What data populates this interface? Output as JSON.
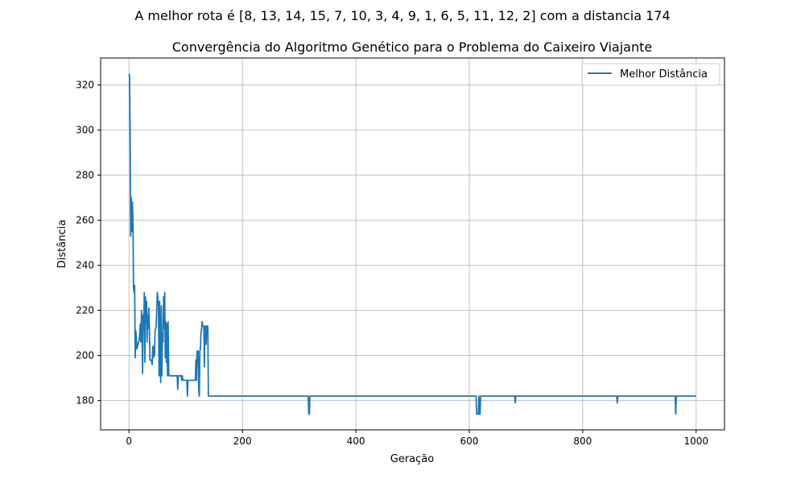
{
  "suptitle": "A melhor rota é [8, 13, 14, 15, 7, 10, 3, 4, 9, 1, 6, 5, 11, 12, 2] com a distancia 174",
  "chart_data": {
    "type": "line",
    "title": "Convergência do Algoritmo Genético para o Problema do Caixeiro Viajante",
    "xlabel": "Geração",
    "ylabel": "Distância",
    "xlim": [
      -50,
      1050
    ],
    "ylim": [
      167,
      332
    ],
    "xticks": [
      0,
      200,
      400,
      600,
      800,
      1000
    ],
    "yticks": [
      180,
      200,
      220,
      240,
      260,
      280,
      300,
      320
    ],
    "grid": true,
    "legend": "top-right",
    "series": [
      {
        "name": "Melhor Distância",
        "color": "#1f77b4",
        "points": [
          [
            0,
            325
          ],
          [
            1,
            324
          ],
          [
            2,
            300
          ],
          [
            3,
            253
          ],
          [
            4,
            270
          ],
          [
            5,
            255
          ],
          [
            6,
            268
          ],
          [
            7,
            260
          ],
          [
            8,
            230
          ],
          [
            9,
            228
          ],
          [
            10,
            231
          ],
          [
            11,
            199
          ],
          [
            12,
            211
          ],
          [
            13,
            208
          ],
          [
            14,
            203
          ],
          [
            15,
            204
          ],
          [
            17,
            206
          ],
          [
            18,
            207
          ],
          [
            19,
            210
          ],
          [
            20,
            214
          ],
          [
            21,
            206
          ],
          [
            22,
            220
          ],
          [
            23,
            213
          ],
          [
            24,
            192
          ],
          [
            25,
            218
          ],
          [
            26,
            212
          ],
          [
            27,
            228
          ],
          [
            28,
            197
          ],
          [
            29,
            226
          ],
          [
            30,
            214
          ],
          [
            31,
            224
          ],
          [
            32,
            206
          ],
          [
            33,
            218
          ],
          [
            34,
            212
          ],
          [
            35,
            221
          ],
          [
            36,
            213
          ],
          [
            37,
            198
          ],
          [
            39,
            198
          ],
          [
            40,
            197
          ],
          [
            41,
            196
          ],
          [
            42,
            204
          ],
          [
            43,
            199
          ],
          [
            44,
            204
          ],
          [
            45,
            200
          ],
          [
            46,
            211
          ],
          [
            47,
            212
          ],
          [
            48,
            213
          ],
          [
            49,
            221
          ],
          [
            50,
            228
          ],
          [
            51,
            225
          ],
          [
            52,
            222
          ],
          [
            53,
            191
          ],
          [
            54,
            224
          ],
          [
            55,
            196
          ],
          [
            56,
            188
          ],
          [
            57,
            222
          ],
          [
            58,
            191
          ],
          [
            59,
            210
          ],
          [
            60,
            206
          ],
          [
            61,
            226
          ],
          [
            62,
            212
          ],
          [
            63,
            228
          ],
          [
            64,
            199
          ],
          [
            65,
            215
          ],
          [
            66,
            197
          ],
          [
            67,
            214
          ],
          [
            68,
            191
          ],
          [
            69,
            215
          ],
          [
            70,
            192
          ],
          [
            71,
            191
          ],
          [
            80,
            191
          ],
          [
            85,
            191
          ],
          [
            86,
            185
          ],
          [
            87,
            191
          ],
          [
            90,
            191
          ],
          [
            92,
            191
          ],
          [
            93,
            189
          ],
          [
            94,
            191
          ],
          [
            95,
            189
          ],
          [
            100,
            189
          ],
          [
            102,
            189
          ],
          [
            103,
            182
          ],
          [
            104,
            189
          ],
          [
            110,
            189
          ],
          [
            117,
            189
          ],
          [
            118,
            198
          ],
          [
            119,
            189
          ],
          [
            120,
            202
          ],
          [
            121,
            196
          ],
          [
            122,
            202
          ],
          [
            123,
            184
          ],
          [
            124,
            182
          ],
          [
            125,
            202
          ],
          [
            126,
            203
          ],
          [
            127,
            210
          ],
          [
            128,
            212
          ],
          [
            129,
            215
          ],
          [
            130,
            213
          ],
          [
            131,
            213
          ],
          [
            132,
            213
          ],
          [
            133,
            195
          ],
          [
            134,
            213
          ],
          [
            135,
            213
          ],
          [
            136,
            205
          ],
          [
            137,
            213
          ],
          [
            138,
            213
          ],
          [
            139,
            213
          ],
          [
            140,
            182
          ],
          [
            150,
            182
          ],
          [
            200,
            182
          ],
          [
            300,
            182
          ],
          [
            316,
            182
          ],
          [
            317,
            174
          ],
          [
            318,
            174
          ],
          [
            319,
            182
          ],
          [
            400,
            182
          ],
          [
            500,
            182
          ],
          [
            600,
            182
          ],
          [
            612,
            182
          ],
          [
            613,
            174
          ],
          [
            614,
            174
          ],
          [
            616,
            174
          ],
          [
            617,
            182
          ],
          [
            618,
            174
          ],
          [
            619,
            174
          ],
          [
            620,
            182
          ],
          [
            680,
            182
          ],
          [
            681,
            179
          ],
          [
            682,
            182
          ],
          [
            700,
            182
          ],
          [
            800,
            182
          ],
          [
            860,
            182
          ],
          [
            861,
            179
          ],
          [
            862,
            182
          ],
          [
            900,
            182
          ],
          [
            963,
            182
          ],
          [
            964,
            174
          ],
          [
            965,
            182
          ],
          [
            1000,
            182
          ]
        ]
      }
    ]
  }
}
